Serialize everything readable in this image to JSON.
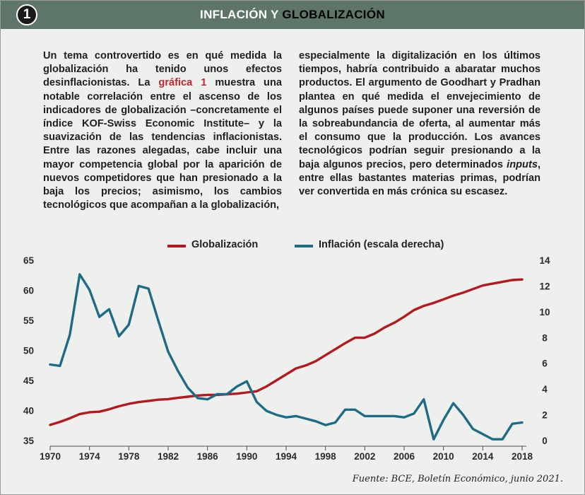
{
  "header": {
    "badge": "1",
    "title_part1": "INFLACIÓN Y ",
    "title_part2": "GLOBALIZACIÓN"
  },
  "text": {
    "col1_a": "Un tema controvertido es en qué medida la globalización ha tenido unos efectos desinflacionistas. La ",
    "col1_ref": "gráfica 1",
    "col1_b": " muestra una notable correlación entre el ascenso de los indicadores de globalización –concretamente el índice KOF-Swiss Economic Institute– y la suavización de las tendencias inflacionistas. Entre las razones alegadas, cabe incluir una mayor competencia global por la aparición de nuevos competidores que han presionado a la baja los precios; asimismo, los cambios tecnológicos que acompañan a la globalización,",
    "col2_a": "especialmente la digitalización en los últimos tiempos, habría contribuido a abaratar muchos productos. El argumento de Goodhart y Pradhan plantea en qué medida el envejecimiento de algunos países puede suponer una reversión de la sobreabundancia de oferta, al aumentar más el consumo que la producción. Los avances tecnológicos podrían seguir presionando a la baja algunos precios, pero determinados ",
    "col2_em": "inputs",
    "col2_b": ", entre ellas bastantes materias primas, podrían ver convertida en más crónica su escasez."
  },
  "source": "Fuente: BCE, Boletín Económico, junio 2021.",
  "chart_data": {
    "type": "line",
    "legend_position": "top",
    "grid": false,
    "xlim": [
      1970,
      2018
    ],
    "x_ticks": [
      1970,
      1974,
      1978,
      1982,
      1986,
      1990,
      1994,
      1998,
      2002,
      2006,
      2010,
      2014,
      2018
    ],
    "ylim_left": [
      35,
      65
    ],
    "y_ticks_left": [
      35,
      40,
      45,
      50,
      55,
      60,
      65
    ],
    "ylim_right": [
      0,
      14
    ],
    "y_ticks_right": [
      0,
      2,
      4,
      6,
      8,
      10,
      12,
      14
    ],
    "series": [
      {
        "name": "Globalización",
        "axis": "left",
        "color": "#b3191e",
        "x": [
          1970,
          1971,
          1972,
          1973,
          1974,
          1975,
          1976,
          1977,
          1978,
          1979,
          1980,
          1981,
          1982,
          1983,
          1984,
          1985,
          1986,
          1987,
          1988,
          1989,
          1990,
          1991,
          1992,
          1993,
          1994,
          1995,
          1996,
          1997,
          1998,
          1999,
          2000,
          2001,
          2002,
          2003,
          2004,
          2005,
          2006,
          2007,
          2008,
          2009,
          2010,
          2011,
          2012,
          2013,
          2014,
          2015,
          2016,
          2017,
          2018
        ],
        "values": [
          37.6,
          38.1,
          38.7,
          39.4,
          39.7,
          39.8,
          40.2,
          40.7,
          41.1,
          41.4,
          41.6,
          41.8,
          41.9,
          42.1,
          42.3,
          42.5,
          42.6,
          42.6,
          42.7,
          42.8,
          43.0,
          43.2,
          44.0,
          45.0,
          46.0,
          47.0,
          47.5,
          48.2,
          49.2,
          50.2,
          51.2,
          52.1,
          52.1,
          52.8,
          53.8,
          54.6,
          55.6,
          56.7,
          57.4,
          57.9,
          58.5,
          59.1,
          59.6,
          60.2,
          60.8,
          61.1,
          61.4,
          61.7,
          61.8
        ]
      },
      {
        "name": "Inflación (escala derecha)",
        "axis": "right",
        "color": "#1f6b86",
        "x": [
          1970,
          1971,
          1972,
          1973,
          1974,
          1975,
          1976,
          1977,
          1978,
          1979,
          1980,
          1981,
          1982,
          1983,
          1984,
          1985,
          1986,
          1987,
          1988,
          1989,
          1990,
          1991,
          1992,
          1993,
          1994,
          1995,
          1996,
          1997,
          1998,
          1999,
          2000,
          2001,
          2002,
          2003,
          2004,
          2005,
          2006,
          2007,
          2008,
          2009,
          2010,
          2011,
          2012,
          2013,
          2014,
          2015,
          2016,
          2017,
          2018
        ],
        "values": [
          5.9,
          5.8,
          8.2,
          12.9,
          11.7,
          9.6,
          10.2,
          8.1,
          9.0,
          12.0,
          11.8,
          9.3,
          6.9,
          5.4,
          4.1,
          3.3,
          3.2,
          3.6,
          3.6,
          4.2,
          4.6,
          3.0,
          2.3,
          2.0,
          1.8,
          1.9,
          1.7,
          1.5,
          1.2,
          1.4,
          2.4,
          2.4,
          1.9,
          1.9,
          1.9,
          1.9,
          1.8,
          2.1,
          3.2,
          0.1,
          1.6,
          2.9,
          2.0,
          0.9,
          0.5,
          0.1,
          0.1,
          1.3,
          1.4
        ]
      }
    ]
  }
}
